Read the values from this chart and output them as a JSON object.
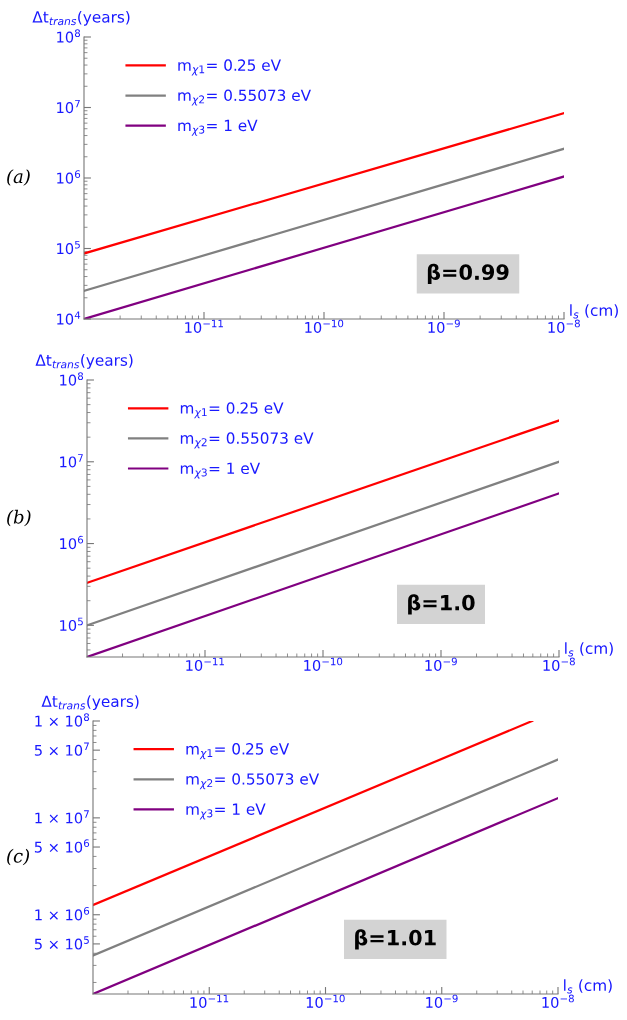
{
  "chart_data": [
    {
      "type": "line",
      "xlabel": "l$_{s}$ (cm)",
      "ylabel": "Δt$_{trans}$(years)",
      "log": "xy",
      "grid": false,
      "legend": "top left",
      "marker": "none",
      "line_style": "solid",
      "xlim": [
        1e-12,
        1e-08
      ],
      "xticks": [
        {
          "value": 1e-11,
          "label": "10$^{−11}$"
        },
        {
          "value": 1e-10,
          "label": "10$^{−10}$"
        },
        {
          "value": 1e-09,
          "label": "10$^{−9}$"
        },
        {
          "value": 1e-08,
          "label": "10$^{−8}$"
        }
      ],
      "ylim": [
        10000.0,
        100000000.0
      ],
      "yticks": [
        {
          "value": 10000.0,
          "label": "10$^{4}$"
        },
        {
          "value": 100000.0,
          "label": "10$^{5}$"
        },
        {
          "value": 1000000.0,
          "label": "10$^{6}$"
        },
        {
          "value": 10000000.0,
          "label": "10$^{7}$"
        },
        {
          "value": 100000000.0,
          "label": "10$^{8}$"
        }
      ],
      "annotations": [
        "(a)",
        "β=0.99"
      ],
      "series": [
        {
          "name": "m$_{χ1}$= 0.25 eV",
          "color": "#ff0000",
          "x": [
            1e-12,
            1e-08
          ],
          "values": [
            85000.0,
            8300000.0
          ]
        },
        {
          "name": "m$_{χ2}$= 0.55073 eV",
          "color": "#808080",
          "x": [
            1e-12,
            1e-08
          ],
          "values": [
            25000.0,
            2600000.0
          ]
        },
        {
          "name": "m$_{χ3}$= 1 eV",
          "color": "#800080",
          "x": [
            1e-12,
            1e-08
          ],
          "values": [
            10000.0,
            1050000.0
          ]
        }
      ]
    },
    {
      "type": "line",
      "xlabel": "l$_{s}$ (cm)",
      "ylabel": "Δt$_{trans}$(years)",
      "log": "xy",
      "grid": false,
      "legend": "top left",
      "marker": "none",
      "line_style": "solid",
      "xlim": [
        1e-12,
        1e-08
      ],
      "xticks": [
        {
          "value": 1e-11,
          "label": "10$^{−11}$"
        },
        {
          "value": 1e-10,
          "label": "10$^{−10}$"
        },
        {
          "value": 1e-09,
          "label": "10$^{−9}$"
        },
        {
          "value": 1e-08,
          "label": "10$^{−8}$"
        }
      ],
      "ylim": [
        41000.0,
        100000000.0
      ],
      "yticks": [
        {
          "value": 100000.0,
          "label": "10$^{5}$"
        },
        {
          "value": 1000000.0,
          "label": "10$^{6}$"
        },
        {
          "value": 10000000.0,
          "label": "10$^{7}$"
        },
        {
          "value": 100000000.0,
          "label": "10$^{8}$"
        }
      ],
      "annotations": [
        "(b)",
        "β=1.0"
      ],
      "series": [
        {
          "name": "m$_{χ1}$= 0.25 eV",
          "color": "#ff0000",
          "x": [
            1e-12,
            1e-08
          ],
          "values": [
            330000.0,
            32000000.0
          ]
        },
        {
          "name": "m$_{χ2}$= 0.55073 eV",
          "color": "#808080",
          "x": [
            1e-12,
            1e-08
          ],
          "values": [
            100000.0,
            10000000.0
          ]
        },
        {
          "name": "m$_{χ3}$= 1 eV",
          "color": "#800080",
          "x": [
            1e-12,
            1e-08
          ],
          "values": [
            41000.0,
            4100000.0
          ]
        }
      ]
    },
    {
      "type": "line",
      "xlabel": "l$_{s}$ (cm)",
      "ylabel": "Δt$_{trans}$(years)",
      "log": "xy",
      "grid": false,
      "legend": "top left",
      "marker": "none",
      "line_style": "solid",
      "xlim": [
        1e-12,
        1e-08
      ],
      "xticks": [
        {
          "value": 1e-11,
          "label": "10$^{−11}$"
        },
        {
          "value": 1e-10,
          "label": "10$^{−10}$"
        },
        {
          "value": 1e-09,
          "label": "10$^{−9}$"
        },
        {
          "value": 1e-08,
          "label": "10$^{−8}$"
        }
      ],
      "ylim": [
        152000.0,
        100000000.0
      ],
      "yticks": [
        {
          "value": 500000.0,
          "label": "5 × 10$^{5}$"
        },
        {
          "value": 1000000.0,
          "label": "1 × 10$^{6}$"
        },
        {
          "value": 5000000.0,
          "label": "5 × 10$^{6}$"
        },
        {
          "value": 10000000.0,
          "label": "1 × 10$^{7}$"
        },
        {
          "value": 50000000.0,
          "label": "5 × 10$^{7}$"
        },
        {
          "value": 100000000.0,
          "label": "1 × 10$^{8}$"
        }
      ],
      "annotations": [
        "(c)",
        "β=1.01"
      ],
      "series": [
        {
          "name": "m$_{χ1}$= 0.25 eV",
          "color": "#ff0000",
          "x": [
            1e-12,
            6e-09
          ],
          "values": [
            1260000.0,
            100000000.0
          ]
        },
        {
          "name": "m$_{χ2}$= 0.55073 eV",
          "color": "#808080",
          "x": [
            1e-12,
            1e-08
          ],
          "values": [
            380000.0,
            40000000.0
          ]
        },
        {
          "name": "m$_{χ3}$= 1 eV",
          "color": "#800080",
          "x": [
            1e-12,
            1e-08
          ],
          "values": [
            152000.0,
            16000000.0
          ]
        }
      ]
    }
  ]
}
